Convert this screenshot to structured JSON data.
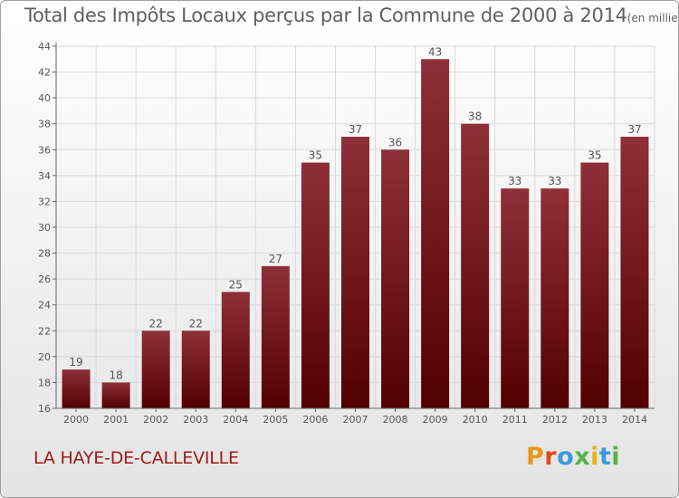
{
  "header": {
    "title": "Total des Impôts Locaux perçus par la Commune de 2000 à 2014",
    "unit": "(en milliers d'€)"
  },
  "footer": {
    "commune": "LA HAYE-DE-CALLEVILLE",
    "logo": [
      "P",
      "r",
      "o",
      "x",
      "i",
      "t",
      "i"
    ]
  },
  "colors": {
    "bar_top": "#8e3039",
    "bar_bottom": "#520000",
    "grid": "#d9d9d9",
    "axis_text": "#555555"
  },
  "chart_data": {
    "type": "bar",
    "title": "Total des Impôts Locaux perçus par la Commune de 2000 à 2014",
    "unit": "(en milliers d'€)",
    "xlabel": "",
    "ylabel": "",
    "categories": [
      "2000",
      "2001",
      "2002",
      "2003",
      "2004",
      "2005",
      "2006",
      "2007",
      "2008",
      "2009",
      "2010",
      "2011",
      "2012",
      "2013",
      "2014"
    ],
    "values": [
      19,
      18,
      22,
      22,
      25,
      27,
      35,
      37,
      36,
      43,
      38,
      33,
      33,
      35,
      37
    ],
    "ylim": [
      16,
      44
    ],
    "yticks": [
      16,
      18,
      20,
      22,
      24,
      26,
      28,
      30,
      32,
      34,
      36,
      38,
      40,
      42,
      44
    ],
    "grid": true,
    "legend": "none"
  }
}
